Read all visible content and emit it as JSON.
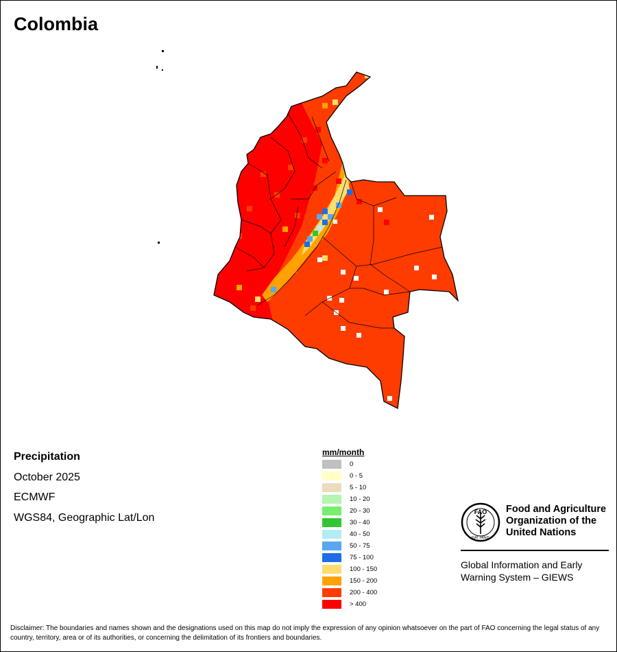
{
  "title": "Colombia",
  "info": {
    "variable": "Precipitation",
    "period": "October 2025",
    "source": "ECMWF",
    "projection": "WGS84, Geographic Lat/Lon"
  },
  "legend": {
    "title": "mm/month",
    "items": [
      {
        "range": "0",
        "color": "#c0c0c0"
      },
      {
        "range": "0 - 5",
        "color": "#ffffc6"
      },
      {
        "range": "5 - 10",
        "color": "#ecdcbe"
      },
      {
        "range": "10 - 20",
        "color": "#b5f5b0"
      },
      {
        "range": "20 - 30",
        "color": "#77ee70"
      },
      {
        "range": "30 - 40",
        "color": "#33c633"
      },
      {
        "range": "40 - 50",
        "color": "#b4ecf4"
      },
      {
        "range": "50 - 75",
        "color": "#58a7f0"
      },
      {
        "range": "75 - 100",
        "color": "#1c6ee6"
      },
      {
        "range": "100 - 150",
        "color": "#ffdc6e"
      },
      {
        "range": "150 - 200",
        "color": "#ffa200"
      },
      {
        "range": "200 - 400",
        "color": "#ff3c00"
      },
      {
        "range": "> 400",
        "color": "#ff0000"
      }
    ]
  },
  "fao": {
    "logo_text": "FAO",
    "logo_motto": "FIAT PANIS",
    "org_name": "Food and Agriculture Organization of the United Nations",
    "system_name": "Global Information and Early Warning System – GIEWS"
  },
  "disclaimer": "Disclaimer: The boundaries and names shown and the designations used on this map do not imply the expression of any opinion whatsoever on the part of FAO concerning the legal status of any country, territory, area or of its authorities, or concerning the delimitation of its frontiers and boundaries."
}
